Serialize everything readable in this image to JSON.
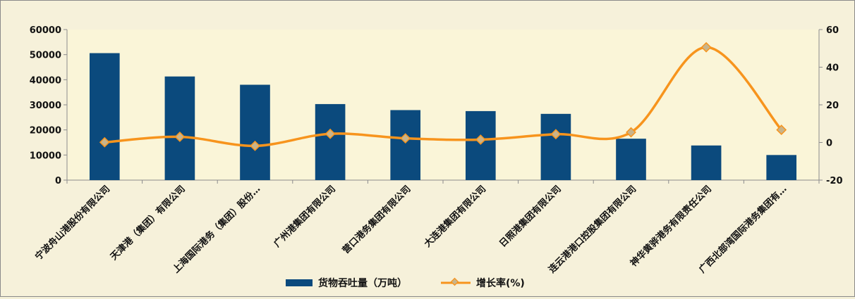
{
  "chart_data": {
    "type": "bar",
    "categories": [
      "宁波舟山港股份有限公司",
      "天津港（集团）有限公司",
      "上海国际港务（集团）股份…",
      "广州港集团有限公司",
      "营口港务集团有限公司",
      "大连港集团有限公司",
      "日照港集团有限公司",
      "连云港港口控股集团有限公司",
      "神华黄骅港务有限责任公司",
      "广西北部湾国际港务集团有…"
    ],
    "series": [
      {
        "name": "货物吞吐量（万吨）",
        "type": "bar",
        "axis": "left",
        "color": "#0b4a7d",
        "values": [
          50600,
          41300,
          38000,
          30300,
          27900,
          27500,
          26400,
          16500,
          13800,
          10000
        ]
      },
      {
        "name": "增长率(%)",
        "type": "line",
        "axis": "right",
        "color": "#f7941d",
        "marker_color": "#c9b48a",
        "values": [
          0.1,
          3.0,
          -1.8,
          4.6,
          2.2,
          1.5,
          4.4,
          5.4,
          50.6,
          6.7
        ]
      }
    ],
    "y_left": {
      "min": 0,
      "max": 60000,
      "ticks": [
        0,
        10000,
        20000,
        30000,
        40000,
        50000,
        60000
      ]
    },
    "y_right": {
      "min": -20,
      "max": 60,
      "ticks": [
        -20,
        0,
        20,
        40,
        60
      ]
    },
    "plot_background": "#faf5d8",
    "grid": false,
    "legend_position": "bottom"
  }
}
